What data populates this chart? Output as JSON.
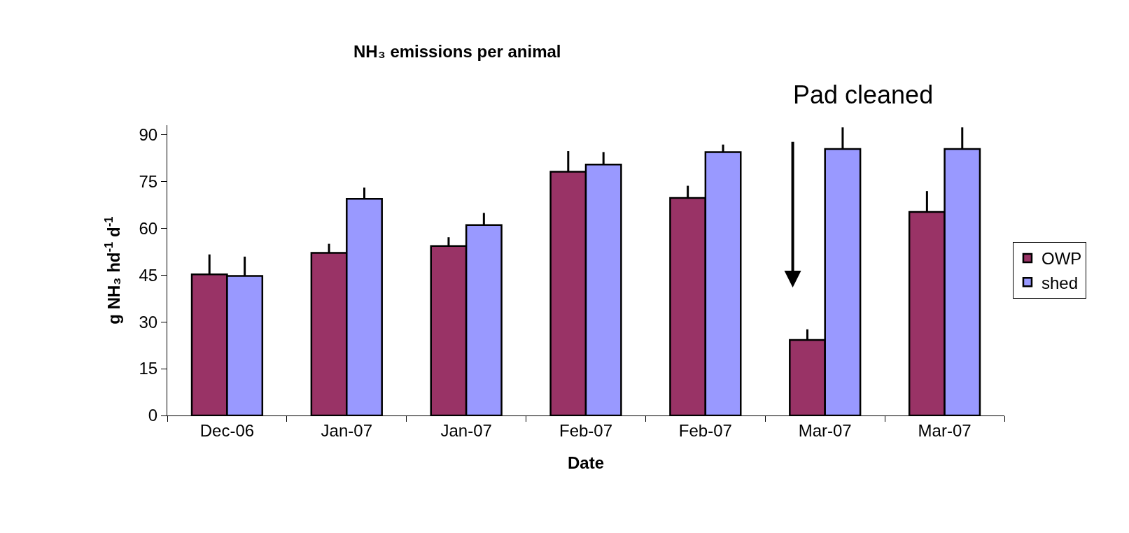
{
  "chart_data": {
    "type": "bar",
    "title": "NH₃ emissions per animal",
    "xlabel": "Date",
    "ylabel": "g NH₃ hd$^{-1}$ d$^{-1}$",
    "categories": [
      "Dec-06",
      "Jan-07",
      "Jan-07",
      "Feb-07",
      "Feb-07",
      "Mar-07",
      "Mar-07"
    ],
    "series": [
      {
        "name": "OWP",
        "color": "#993366",
        "values": [
          45.2,
          52.1,
          54.3,
          78.1,
          69.7,
          24.2,
          65.2
        ],
        "errors": [
          [
            45.2,
            51.6
          ],
          [
            52.1,
            55.0
          ],
          [
            54.3,
            57.1
          ],
          [
            78.1,
            84.7
          ],
          [
            69.7,
            73.6
          ],
          [
            24.2,
            27.6
          ],
          [
            65.2,
            71.9
          ]
        ]
      },
      {
        "name": "shed",
        "color": "#9999ff",
        "values": [
          44.7,
          69.4,
          61.0,
          80.4,
          84.4,
          85.4,
          85.4
        ],
        "errors": [
          [
            44.7,
            50.9
          ],
          [
            69.4,
            73.0
          ],
          [
            61.0,
            64.9
          ],
          [
            80.4,
            84.4
          ],
          [
            84.4,
            86.8
          ],
          [
            85.4,
            92.3
          ],
          [
            85.4,
            92.3
          ]
        ]
      }
    ],
    "annotations": [
      "Pad cleaned"
    ],
    "ylim": [
      0,
      93
    ],
    "yticks": [
      0,
      15,
      30,
      45,
      60,
      75,
      90
    ],
    "legend": "right"
  }
}
